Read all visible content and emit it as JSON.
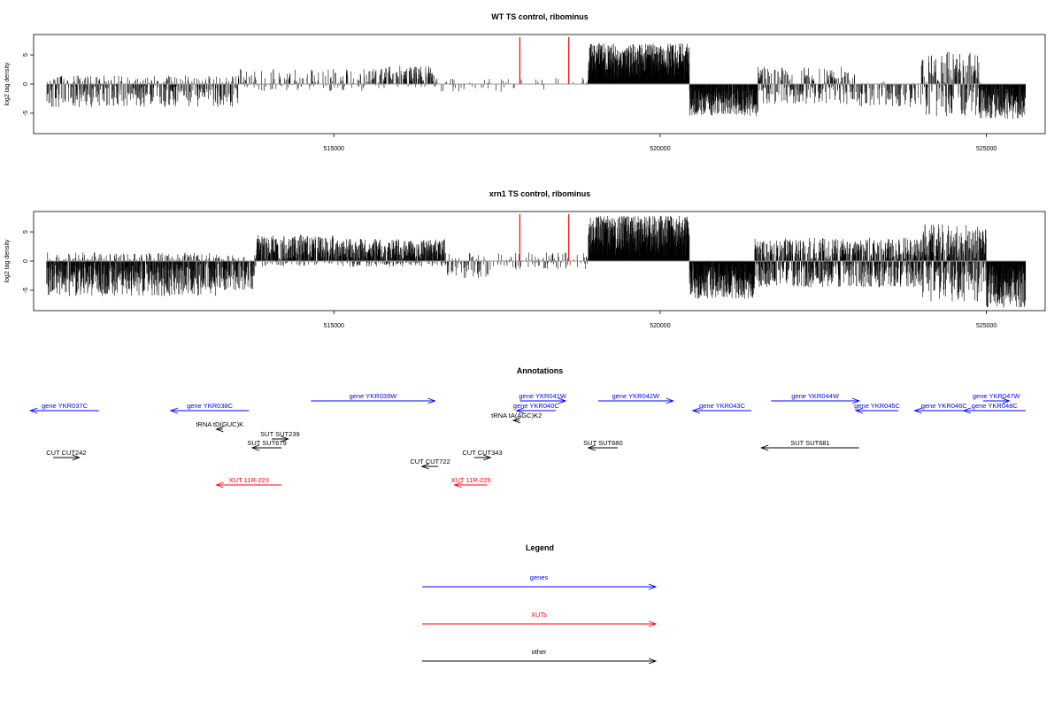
{
  "colors": {
    "gene": "#0000ff",
    "xut": "#ff0000",
    "other": "#000000",
    "marker": "#ff0000",
    "baseline": "#999999"
  },
  "chart_data": [
    {
      "type": "bar",
      "title": "WT TS control, ribominus",
      "ylabel": "log2 tag density",
      "xlim": [
        510400,
        525900
      ],
      "ylim": [
        -8.5,
        8.5
      ],
      "yticks": [
        -5,
        0,
        5
      ],
      "xticks": [
        515000,
        520000,
        525000
      ],
      "xtick_labels": [
        "515000",
        "520000",
        "525000"
      ],
      "markers": [
        517850,
        518600
      ],
      "segments": [
        {
          "start": 510600,
          "end": 513550,
          "min": -4,
          "max": 1.5,
          "density": 0.45
        },
        {
          "start": 513550,
          "end": 515700,
          "min": -1.2,
          "max": 2.6,
          "density": 0.25
        },
        {
          "start": 515700,
          "end": 516600,
          "min": -0.8,
          "max": 3.2,
          "density": 0.5
        },
        {
          "start": 516600,
          "end": 517900,
          "min": -1.5,
          "max": 1.0,
          "density": 0.1
        },
        {
          "start": 517900,
          "end": 518900,
          "min": -1.0,
          "max": 1.2,
          "density": 0.08
        },
        {
          "start": 518900,
          "end": 520450,
          "min": 0.6,
          "max": 7.0,
          "density": 1.0
        },
        {
          "start": 520450,
          "end": 521500,
          "min": -5.5,
          "max": 0,
          "density": 0.9
        },
        {
          "start": 521500,
          "end": 523000,
          "min": -3.5,
          "max": 3.0,
          "density": 0.5
        },
        {
          "start": 523000,
          "end": 524000,
          "min": -4.0,
          "max": 0.5,
          "density": 0.35
        },
        {
          "start": 524000,
          "end": 524900,
          "min": -5.5,
          "max": 5.5,
          "density": 0.6
        },
        {
          "start": 524900,
          "end": 525600,
          "min": -6.0,
          "max": 0,
          "density": 0.9
        }
      ]
    },
    {
      "type": "bar",
      "title": "xrn1 TS control, ribominus",
      "ylabel": "log2 tag density",
      "xlim": [
        510400,
        525900
      ],
      "ylim": [
        -8.5,
        8.5
      ],
      "yticks": [
        -5,
        0,
        5
      ],
      "xticks": [
        515000,
        520000,
        525000
      ],
      "xtick_labels": [
        "515000",
        "520000",
        "525000"
      ],
      "markers": [
        517850,
        518600
      ],
      "segments": [
        {
          "start": 510600,
          "end": 513200,
          "min": -6.0,
          "max": 1.5,
          "density": 0.9
        },
        {
          "start": 513200,
          "end": 513800,
          "min": -5.0,
          "max": 1.0,
          "density": 0.7
        },
        {
          "start": 513800,
          "end": 515000,
          "min": -1.0,
          "max": 4.5,
          "density": 0.8
        },
        {
          "start": 515000,
          "end": 516700,
          "min": -1.0,
          "max": 3.8,
          "density": 0.95
        },
        {
          "start": 516700,
          "end": 517500,
          "min": -3.0,
          "max": 1.5,
          "density": 0.3
        },
        {
          "start": 517500,
          "end": 518900,
          "min": -1.5,
          "max": 1.5,
          "density": 0.25
        },
        {
          "start": 518900,
          "end": 520450,
          "min": 0.5,
          "max": 7.8,
          "density": 1.0
        },
        {
          "start": 520450,
          "end": 521450,
          "min": -6.5,
          "max": 0,
          "density": 1.0
        },
        {
          "start": 521450,
          "end": 524000,
          "min": -4.5,
          "max": 4.0,
          "density": 0.95
        },
        {
          "start": 524000,
          "end": 525000,
          "min": -7.0,
          "max": 6.5,
          "density": 1.0
        },
        {
          "start": 525000,
          "end": 525600,
          "min": -8.0,
          "max": 0,
          "density": 1.0
        }
      ]
    }
  ],
  "annotations": {
    "title": "Annotations",
    "features": [
      {
        "label": "gene YKR037C",
        "type": "gene",
        "start": 511400,
        "end": 510350,
        "track": 2
      },
      {
        "label": "gene YKR038C",
        "type": "gene",
        "start": 513700,
        "end": 512500,
        "track": 2
      },
      {
        "label": "gene YKR039W",
        "type": "gene",
        "start": 514650,
        "end": 516550,
        "track": 1
      },
      {
        "label": "gene YKR041W",
        "type": "gene",
        "start": 517850,
        "end": 518550,
        "track": 1
      },
      {
        "label": "gene YKR040C",
        "type": "gene",
        "start": 518400,
        "end": 517800,
        "track": 2
      },
      {
        "label": "gene YKR042W",
        "type": "gene",
        "start": 519050,
        "end": 520200,
        "track": 1
      },
      {
        "label": "gene YKR043C",
        "type": "gene",
        "start": 521400,
        "end": 520500,
        "track": 2
      },
      {
        "label": "gene YKR044W",
        "type": "gene",
        "start": 521700,
        "end": 523050,
        "track": 1
      },
      {
        "label": "gene YKR045C",
        "type": "gene",
        "start": 523650,
        "end": 523000,
        "track": 2
      },
      {
        "label": "gene YKR046C",
        "type": "gene",
        "start": 524800,
        "end": 523900,
        "track": 2
      },
      {
        "label": "gene YKR047W",
        "type": "gene",
        "start": 524950,
        "end": 525350,
        "track": 1
      },
      {
        "label": "gene YKR048C",
        "type": "gene",
        "start": 525600,
        "end": 524650,
        "track": 2
      },
      {
        "label": "tRNA tA(AGC)K2",
        "type": "other",
        "start": 517850,
        "end": 517750,
        "track": 3
      },
      {
        "label": "tRNA tD(GUC)K",
        "type": "other",
        "start": 513300,
        "end": 513200,
        "track": 4
      },
      {
        "label": "SUT SUT239",
        "type": "other",
        "start": 514050,
        "end": 514300,
        "track": 5
      },
      {
        "label": "SUT SUT679",
        "type": "other",
        "start": 514200,
        "end": 513750,
        "track": 6
      },
      {
        "label": "SUT SUT680",
        "type": "other",
        "start": 519350,
        "end": 518900,
        "track": 6
      },
      {
        "label": "SUT SUT681",
        "type": "other",
        "start": 523050,
        "end": 521550,
        "track": 6
      },
      {
        "label": "CUT CUT242",
        "type": "other",
        "start": 510700,
        "end": 511100,
        "track": 7
      },
      {
        "label": "CUT CUT343",
        "type": "other",
        "start": 517150,
        "end": 517400,
        "track": 7
      },
      {
        "label": "CUT CUT722",
        "type": "other",
        "start": 516600,
        "end": 516350,
        "track": 8
      },
      {
        "label": "XUT 11R-223",
        "type": "xut",
        "start": 514200,
        "end": 513200,
        "track": 9
      },
      {
        "label": "XUT 11R-226",
        "type": "xut",
        "start": 517350,
        "end": 516850,
        "track": 9
      }
    ]
  },
  "legend": {
    "title": "Legend",
    "items": [
      {
        "label": "genes",
        "type": "gene"
      },
      {
        "label": "XUTs",
        "type": "xut"
      },
      {
        "label": "other",
        "type": "other"
      }
    ]
  }
}
